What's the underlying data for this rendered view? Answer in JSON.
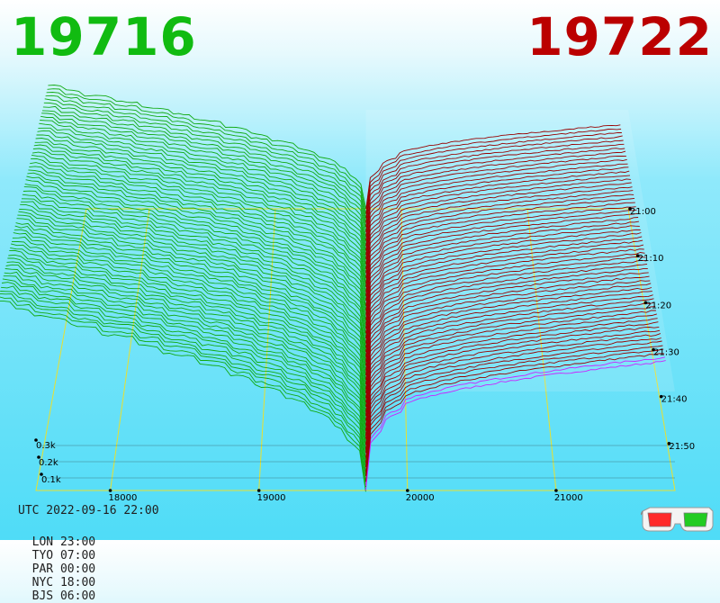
{
  "header": {
    "bid_price": "19716",
    "ask_price": "19722",
    "bid_color": "#11bb11",
    "ask_color": "#bb0000"
  },
  "footer": {
    "utc": "UTC 2022-09-16 22:00",
    "zones": [
      {
        "label": "LON 23:00"
      },
      {
        "label": "TYO 07:00"
      },
      {
        "label": "PAR 00:00"
      },
      {
        "label": "NYC 18:00"
      },
      {
        "label": "BJS 06:00"
      }
    ]
  },
  "icons": {
    "anaglyph": "3d-glasses-icon"
  },
  "chart_data": {
    "type": "area",
    "title": "",
    "price_axis": {
      "ticks": [
        "18000",
        "19000",
        "20000",
        "21000"
      ],
      "min": 17500,
      "max": 21800
    },
    "volume_axis": {
      "ticks": [
        "0.1k",
        "0.2k",
        "0.3k"
      ]
    },
    "time_axis": {
      "ticks": [
        "21:00",
        "21:10",
        "21:20",
        "21:30",
        "21:40",
        "21:50"
      ]
    },
    "mid_price": 19719,
    "series": [
      {
        "name": "19716",
        "side": "bid",
        "color": "#11aa11"
      },
      {
        "name": "19722",
        "side": "ask",
        "color": "#990000"
      }
    ],
    "grid": true
  }
}
